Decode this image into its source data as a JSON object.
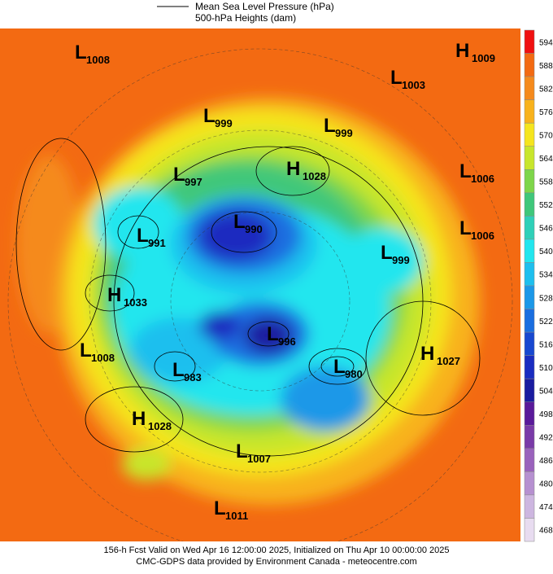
{
  "legend": {
    "line1": "Mean Sea Level Pressure (hPa)",
    "line2": "500-hPa Heights (dam)"
  },
  "pressure_centers": [
    {
      "type": "L",
      "value": "1008"
    },
    {
      "type": "H",
      "value": "1009"
    },
    {
      "type": "L",
      "value": "1003"
    },
    {
      "type": "L",
      "value": "999"
    },
    {
      "type": "L",
      "value": "999"
    },
    {
      "type": "H",
      "value": "1028"
    },
    {
      "type": "L",
      "value": "997"
    },
    {
      "type": "L",
      "value": "1006"
    },
    {
      "type": "L",
      "value": "1006"
    },
    {
      "type": "L",
      "value": "990"
    },
    {
      "type": "L",
      "value": "991"
    },
    {
      "type": "L",
      "value": "999"
    },
    {
      "type": "H",
      "value": "1033"
    },
    {
      "type": "L",
      "value": "996"
    },
    {
      "type": "L",
      "value": "1008"
    },
    {
      "type": "L",
      "value": "983"
    },
    {
      "type": "L",
      "value": "980"
    },
    {
      "type": "H",
      "value": "1027"
    },
    {
      "type": "H",
      "value": "1028"
    },
    {
      "type": "L",
      "value": "1007"
    },
    {
      "type": "L",
      "value": "1011"
    }
  ],
  "colorbar": [
    {
      "label": 594,
      "color": "#f01010"
    },
    {
      "label": 588,
      "color": "#f36a12"
    },
    {
      "label": 582,
      "color": "#f58a1c"
    },
    {
      "label": 576,
      "color": "#f8b21c"
    },
    {
      "label": 570,
      "color": "#f5e51e"
    },
    {
      "label": 564,
      "color": "#c8e62c"
    },
    {
      "label": 558,
      "color": "#7ed64a"
    },
    {
      "label": 552,
      "color": "#3fc77a"
    },
    {
      "label": 546,
      "color": "#2fd0b8"
    },
    {
      "label": 540,
      "color": "#22e6ee"
    },
    {
      "label": 534,
      "color": "#1ebfee"
    },
    {
      "label": 528,
      "color": "#1c98e8"
    },
    {
      "label": 522,
      "color": "#1a6ee0"
    },
    {
      "label": 516,
      "color": "#1848d0"
    },
    {
      "label": 510,
      "color": "#1a2cc0"
    },
    {
      "label": 504,
      "color": "#1a1ca0"
    },
    {
      "label": 498,
      "color": "#5a1a9a"
    },
    {
      "label": 492,
      "color": "#7a3aa8"
    },
    {
      "label": 486,
      "color": "#9a62bc"
    },
    {
      "label": 480,
      "color": "#b690d0"
    },
    {
      "label": 474,
      "color": "#cdb6e0"
    },
    {
      "label": 468,
      "color": "#e8dcf0"
    }
  ],
  "footer": {
    "line1": "156-h Fcst Valid on Wed Apr 16 12:00:00 2025, Initialized on Thu Apr 10 00:00:00 2025",
    "line2": "CMC-GDPS data provided by Environment Canada - meteocentre.com"
  }
}
